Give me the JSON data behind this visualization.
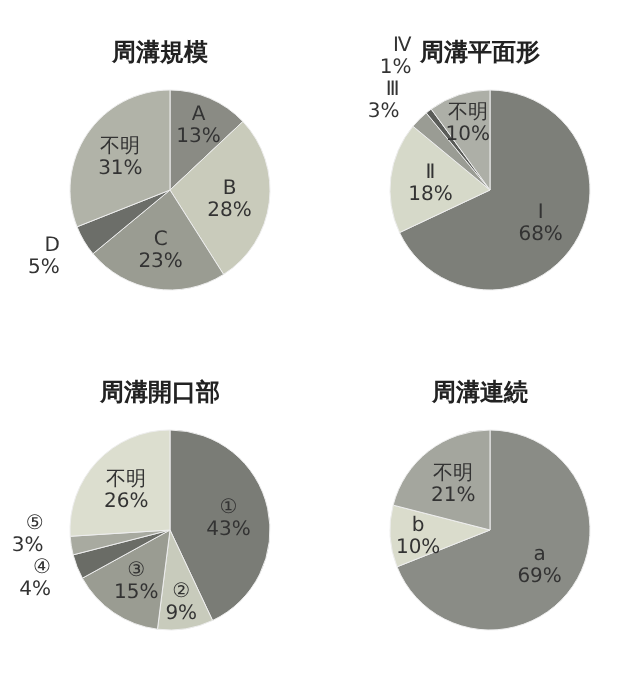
{
  "chart_data": [
    {
      "type": "pie",
      "title": "周溝規模",
      "categories": [
        "A",
        "B",
        "C",
        "D",
        "不明"
      ],
      "values": [
        13,
        28,
        23,
        5,
        31
      ],
      "colors": [
        "#8a8b84",
        "#c9cbbb",
        "#9a9c92",
        "#6c6e69",
        "#b1b3a8"
      ],
      "value_labels": [
        "13%",
        "28%",
        "23%",
        "5%",
        "31%"
      ]
    },
    {
      "type": "pie",
      "title": "周溝平面形",
      "categories": [
        "Ⅰ",
        "Ⅱ",
        "Ⅲ",
        "Ⅳ",
        "不明"
      ],
      "values": [
        68,
        18,
        3,
        1,
        10
      ],
      "colors": [
        "#7d7f79",
        "#d6d9c9",
        "#9a9c94",
        "#5a5c58",
        "#adafa7"
      ],
      "value_labels": [
        "68%",
        "18%",
        "3%",
        "1%",
        "10%"
      ]
    },
    {
      "type": "pie",
      "title": "周溝開口部",
      "categories": [
        "①",
        "②",
        "③",
        "④",
        "⑤",
        "不明"
      ],
      "values": [
        43,
        9,
        15,
        4,
        3,
        26
      ],
      "colors": [
        "#7a7c76",
        "#c8cbbc",
        "#9a9c92",
        "#6a6c66",
        "#a8aaa0",
        "#dcdecf"
      ],
      "value_labels": [
        "43%",
        "9%",
        "15%",
        "4%",
        "3%",
        "26%"
      ]
    },
    {
      "type": "pie",
      "title": "周溝連続",
      "categories": [
        "a",
        "b",
        "不明"
      ],
      "values": [
        69,
        10,
        21
      ],
      "colors": [
        "#8a8c86",
        "#dadccc",
        "#a4a69e"
      ],
      "value_labels": [
        "69%",
        "10%",
        "21%"
      ]
    }
  ]
}
